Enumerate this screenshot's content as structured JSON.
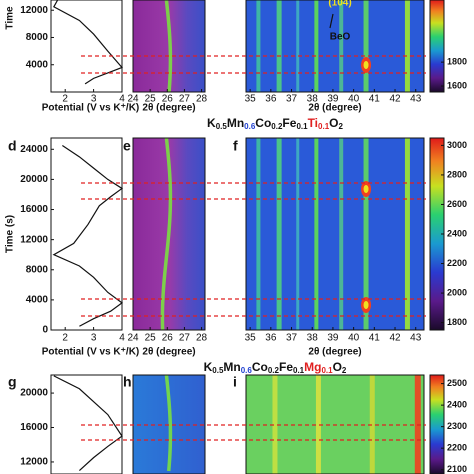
{
  "chart_data": [
    {
      "type": "line",
      "ylabel": "Time",
      "xlabel": "Potential (V vs K⁺/K)",
      "x": [
        1.8,
        1.6,
        2.5,
        3.0,
        3.5,
        4.0,
        3.5,
        3.0,
        2.7
      ],
      "values": [
        14000,
        12500,
        10500,
        8500,
        6000,
        3600,
        2800,
        2000,
        1200
      ],
      "xlim": [
        1.5,
        4
      ],
      "xticks": [
        2,
        3,
        4
      ],
      "ylim": [
        0,
        13500
      ],
      "yticks": [
        4000,
        8000,
        12000
      ],
      "heatmaps": [
        {
          "xlabel": "2θ (degree)",
          "xlim": [
            24,
            28.2
          ],
          "xticks": [
            24,
            25,
            26,
            27,
            28
          ]
        },
        {
          "xlabel": "2θ (degree)",
          "xlim": [
            34.8,
            43.4
          ],
          "xticks": [
            35,
            36,
            37,
            38,
            39,
            40,
            41,
            42,
            43
          ]
        }
      ],
      "annotations": [
        "(104)",
        "BeO"
      ],
      "colorbar": {
        "lim": [
          1550,
          2320
        ],
        "ticks": [
          1600,
          1800
        ]
      }
    },
    {
      "type": "line",
      "title": [
        "K",
        "0.5",
        "Mn",
        "0.6",
        "Co",
        "0.2",
        "Fe",
        "0.1",
        "Ti",
        "0.1",
        "O",
        "2"
      ],
      "panel_labels": [
        "d",
        "e",
        "f"
      ],
      "ylabel": "Time (s)",
      "xlabel": "Potential (V vs K⁺/K)",
      "x": [
        1.9,
        2.5,
        3.0,
        3.5,
        4.0,
        3.6,
        3.2,
        2.8,
        2.3,
        1.6,
        2.5,
        3.0,
        3.5,
        4.0,
        3.6,
        3.0,
        2.5
      ],
      "values": [
        24500,
        23000,
        21500,
        20000,
        18800,
        17700,
        16500,
        14000,
        11500,
        10000,
        8500,
        7000,
        5000,
        3600,
        2500,
        1500,
        500
      ],
      "xlim": [
        1.5,
        4
      ],
      "xticks": [
        2,
        3,
        4
      ],
      "ylim": [
        0,
        25500
      ],
      "yticks": [
        0,
        4000,
        8000,
        12000,
        16000,
        20000,
        24000
      ],
      "heatmaps": [
        {
          "xlabel": "2θ (degree)",
          "xlim": [
            24,
            28.2
          ],
          "xticks": [
            24,
            25,
            26,
            27,
            28
          ]
        },
        {
          "xlabel": "2θ (degree)",
          "xlim": [
            34.8,
            43.4
          ],
          "xticks": [
            35,
            36,
            37,
            38,
            39,
            40,
            41,
            42,
            43
          ]
        }
      ],
      "colorbar": {
        "lim": [
          1750,
          3050
        ],
        "ticks": [
          1800,
          2000,
          2200,
          2400,
          2600,
          2800,
          3000
        ]
      }
    },
    {
      "type": "line",
      "title": [
        "K",
        "0.5",
        "Mn",
        "0.6",
        "Co",
        "0.2",
        "Fe",
        "0.1",
        "Mg",
        "0.1",
        "O",
        "2"
      ],
      "panel_labels": [
        "g",
        "h",
        "i"
      ],
      "x": [
        1.6,
        2.5,
        3.0,
        3.5,
        4.0,
        3.5,
        3.0,
        2.5
      ],
      "values": [
        22000,
        20500,
        19000,
        17500,
        15000,
        13800,
        12500,
        11000
      ],
      "xlim": [
        1.5,
        4
      ],
      "ylim": [
        10600,
        22100
      ],
      "yticks": [
        12000,
        16000,
        20000
      ],
      "heatmaps": [
        {
          "xlim": [
            24,
            28.2
          ]
        },
        {
          "xlim": [
            34.8,
            43.4
          ]
        }
      ],
      "colorbar": {
        "lim": [
          2080,
          2540
        ],
        "ticks": [
          2100,
          2200,
          2300,
          2400,
          2500
        ]
      }
    }
  ]
}
